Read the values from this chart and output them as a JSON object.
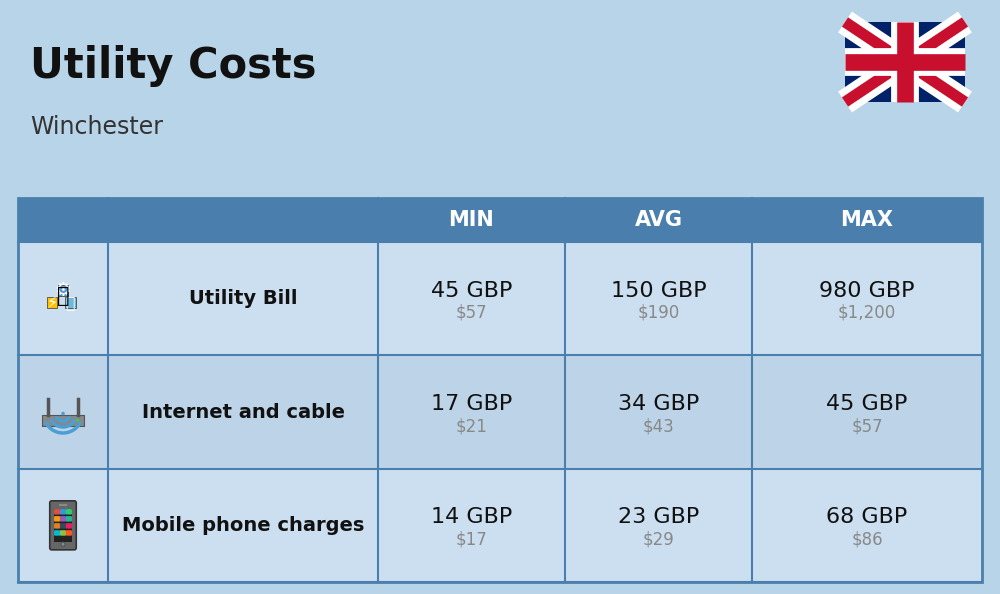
{
  "title": "Utility Costs",
  "subtitle": "Winchester",
  "background_color": "#b8d4e8",
  "header_bg_color": "#4a7fad",
  "header_text_color": "#ffffff",
  "row_bg_color_1": "#ccdff0",
  "row_bg_color_2": "#bdd4e8",
  "table_border_color": "#4a7fad",
  "headers": [
    "MIN",
    "AVG",
    "MAX"
  ],
  "rows": [
    {
      "label": "Utility Bill",
      "min_gbp": "45 GBP",
      "min_usd": "$57",
      "avg_gbp": "150 GBP",
      "avg_usd": "$190",
      "max_gbp": "980 GBP",
      "max_usd": "$1,200",
      "icon": "utility"
    },
    {
      "label": "Internet and cable",
      "min_gbp": "17 GBP",
      "min_usd": "$21",
      "avg_gbp": "34 GBP",
      "avg_usd": "$43",
      "max_gbp": "45 GBP",
      "max_usd": "$57",
      "icon": "internet"
    },
    {
      "label": "Mobile phone charges",
      "min_gbp": "14 GBP",
      "min_usd": "$17",
      "avg_gbp": "23 GBP",
      "avg_usd": "$29",
      "max_gbp": "68 GBP",
      "max_usd": "$86",
      "icon": "mobile"
    }
  ],
  "title_fontsize": 30,
  "subtitle_fontsize": 17,
  "header_fontsize": 15,
  "label_fontsize": 14,
  "value_fontsize": 16,
  "usd_fontsize": 12,
  "usd_color": "#888888",
  "label_color": "#111111",
  "value_color": "#111111"
}
